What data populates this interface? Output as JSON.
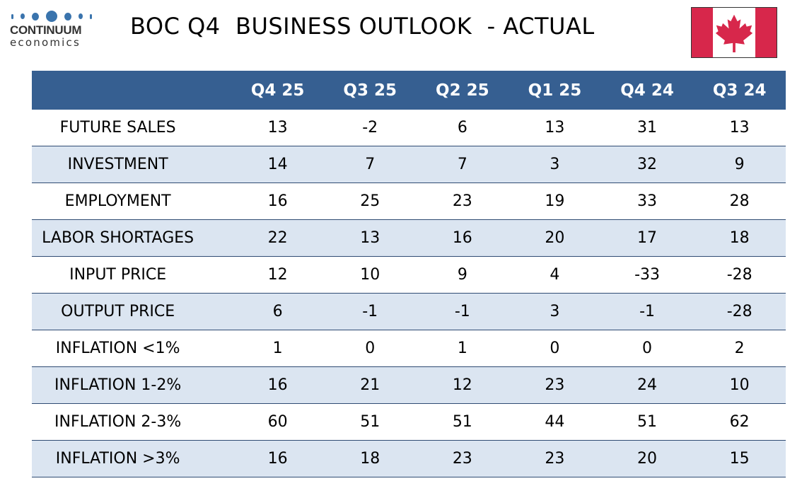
{
  "logo": {
    "word": "CONTINUUM",
    "sub": "economics",
    "color": "#3a74ad"
  },
  "header": {
    "title": "BOC Q4  BUSINESS OUTLOOK  - ACTUAL",
    "flag_icon": "canada-flag-icon",
    "flag_red": "#d7274b"
  },
  "colors": {
    "header_bg": "#365f91",
    "alt_row_bg": "#dbe5f1",
    "rule": "#2f4b73"
  },
  "chart_data": {
    "type": "table",
    "title": "BOC Q4  BUSINESS OUTLOOK  - ACTUAL",
    "columns": [
      "",
      "Q4 25",
      "Q3 25",
      "Q2 25",
      "Q1 25",
      "Q4 24",
      "Q3 24"
    ],
    "rows": [
      {
        "label": "FUTURE SALES",
        "values": [
          "13",
          "-2",
          "6",
          "13",
          "31",
          "13"
        ]
      },
      {
        "label": "INVESTMENT",
        "values": [
          "14",
          "7",
          "7",
          "3",
          "32",
          "9"
        ]
      },
      {
        "label": "EMPLOYMENT",
        "values": [
          "16",
          "25",
          "23",
          "19",
          "33",
          "28"
        ]
      },
      {
        "label": "LABOR SHORTAGES",
        "values": [
          "22",
          "13",
          "16",
          "20",
          "17",
          "18"
        ]
      },
      {
        "label": "INPUT PRICE",
        "values": [
          "12",
          "10",
          "9",
          "4",
          "-33",
          "-28"
        ]
      },
      {
        "label": "OUTPUT PRICE",
        "values": [
          "6",
          "-1",
          "-1",
          "3",
          "-1",
          "-28"
        ]
      },
      {
        "label": "INFLATION <1%",
        "values": [
          "1",
          "0",
          "1",
          "0",
          "0",
          "2"
        ]
      },
      {
        "label": "INFLATION 1-2%",
        "values": [
          "16",
          "21",
          "12",
          "23",
          "24",
          "10"
        ]
      },
      {
        "label": "INFLATION 2-3%",
        "values": [
          "60",
          "51",
          "51",
          "44",
          "51",
          "62"
        ]
      },
      {
        "label": "INFLATION >3%",
        "values": [
          "16",
          "18",
          "23",
          "23",
          "20",
          "15"
        ]
      }
    ]
  }
}
